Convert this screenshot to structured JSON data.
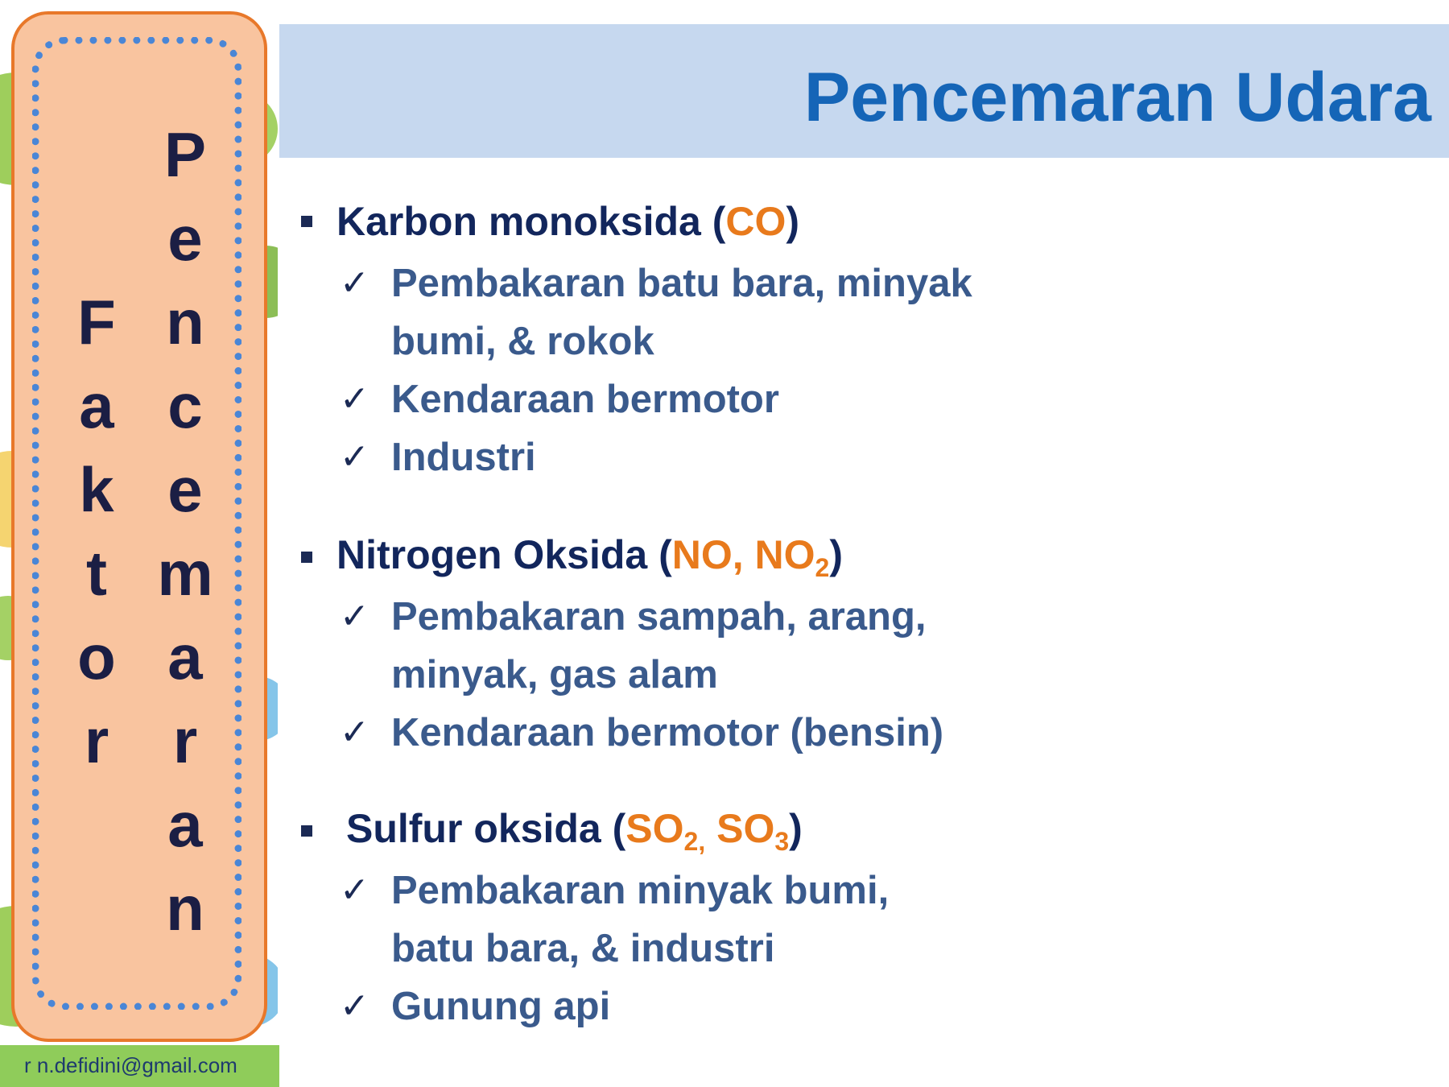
{
  "title": "Pencemaran Udara",
  "side_panel": {
    "word_faktor": [
      "F",
      "a",
      "k",
      "t",
      "o",
      "r"
    ],
    "word_pencemaran": [
      "P",
      "e",
      "n",
      "c",
      "e",
      "m",
      "a",
      "r",
      "a",
      "n"
    ]
  },
  "email": "r n.defidini@gmail.com",
  "sections": [
    {
      "name_prefix": "Karbon monoksida (",
      "formula": "CO",
      "name_suffix": ")",
      "items": [
        "Pembakaran batu bara, minyak\nbumi, & rokok",
        "Kendaraan bermotor",
        "Industri"
      ]
    },
    {
      "name_prefix": "Nitrogen Oksida (",
      "formula_a": "NO, NO",
      "formula_sub": "2",
      "name_suffix": ")",
      "items": [
        "Pembakaran sampah, arang,\nminyak, gas alam",
        "Kendaraan bermotor (bensin)"
      ]
    },
    {
      "name_prefix": "Sulfur oksida (",
      "formula_a": "SO",
      "formula_sub_a": "2,",
      "formula_b": " SO",
      "formula_sub_b": "3",
      "name_suffix": ")",
      "items": [
        "Pembakaran minyak bumi,\nbatu bara, & industri",
        "Gunung api"
      ]
    }
  ],
  "colors": {
    "title": "#1565b7",
    "title_bar": "#c6d8ef",
    "accent": "#e87a1c",
    "heading": "#12265c",
    "item": "#3a5a8c"
  },
  "icons": [
    "square-bullet-icon",
    "check-icon"
  ]
}
